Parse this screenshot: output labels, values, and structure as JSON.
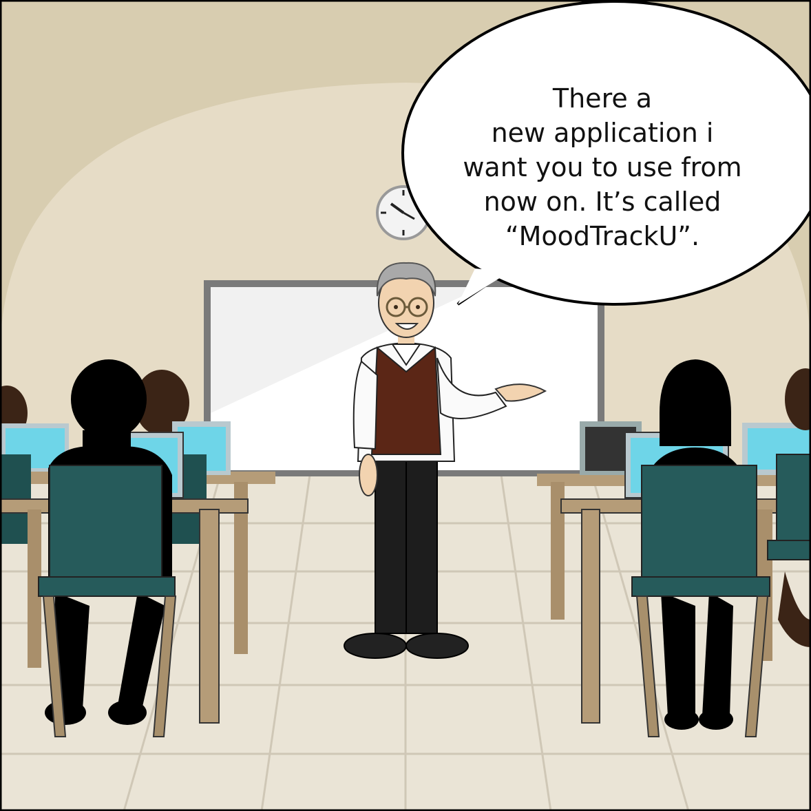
{
  "scene": {
    "description_name": "classroom-comic-panel"
  },
  "speech_bubble": {
    "lines": [
      "There a",
      "new application i",
      "want you to use from",
      "now on. It’s called",
      "“MoodTrackU”."
    ]
  },
  "colors": {
    "wall": "#d8cdb0",
    "arch": "#e6dcc6",
    "floor": "#eae4d6",
    "chair": "#265b5b",
    "desk": "#b59c78",
    "screen": "#6ed5e8",
    "silhouette": "#000000",
    "vest": "#5b2616"
  }
}
